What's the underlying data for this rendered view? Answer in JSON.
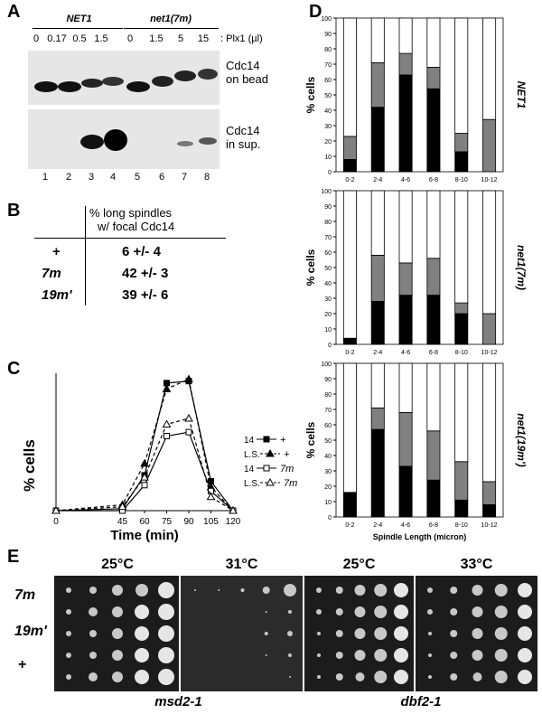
{
  "panelA": {
    "letter": "A",
    "group1": "NET1",
    "group2": "net1(7m)",
    "doses": [
      "0",
      "0.17",
      "0.5",
      "1.5",
      "0",
      "1.5",
      "5",
      "15"
    ],
    "dose_unit": ": Plx1 (µl)",
    "blot1_l1": "Cdc14",
    "blot1_l2": "on bead",
    "blot2_l1": "Cdc14",
    "blot2_l2": "in sup.",
    "lanes": [
      "1",
      "2",
      "3",
      "4",
      "5",
      "6",
      "7",
      "8"
    ]
  },
  "panelB": {
    "letter": "B",
    "header1": "% long spindles",
    "header2": "w/  focal Cdc14",
    "rows": [
      {
        "label": "+",
        "value": "6 +/- 4"
      },
      {
        "label": "7m",
        "value": "42 +/- 3"
      },
      {
        "label": "19m'",
        "value": "39 +/- 6"
      }
    ]
  },
  "panelC": {
    "letter": "C",
    "ylabel": "% cells",
    "xlabel": "Time (min)",
    "legend": [
      {
        "a": "14",
        "b": "+"
      },
      {
        "a": "L.S.",
        "b": "+"
      },
      {
        "a": "14",
        "b": "7m"
      },
      {
        "a": "L.S.",
        "b": "7m"
      }
    ]
  },
  "panelD": {
    "letter": "D",
    "xaxis_title": "Spindle Length (micron)",
    "ylabel": "% cells"
  },
  "panelE": {
    "letter": "E",
    "temps": [
      "25°C",
      "31°C",
      "25°C",
      "33°C"
    ],
    "rows": [
      "7m",
      "19m'",
      "+"
    ],
    "strain1": "msd2-1",
    "strain2": "dbf2-1"
  },
  "colors": {
    "black": "#000000",
    "gray": "#808080",
    "white": "#ffffff"
  },
  "chart_data": [
    {
      "type": "line",
      "x": [
        0,
        45,
        60,
        75,
        90,
        105,
        120
      ],
      "xlabel": "Time (min)",
      "ylabel": "% cells",
      "xlim": [
        0,
        120
      ],
      "ylim": [
        0,
        70
      ],
      "series": [
        {
          "name": "14 +",
          "values": [
            0,
            1,
            18,
            65,
            66,
            15,
            0
          ],
          "marker": "filled-square",
          "dash": false
        },
        {
          "name": "L.S. +",
          "values": [
            0,
            3,
            24,
            62,
            67,
            12,
            0
          ],
          "marker": "filled-triangle",
          "dash": true
        },
        {
          "name": "14 7m",
          "values": [
            0,
            0,
            13,
            38,
            40,
            10,
            0
          ],
          "marker": "open-square",
          "dash": false
        },
        {
          "name": "L.S. 7m",
          "values": [
            0,
            2,
            17,
            44,
            47,
            7,
            0
          ],
          "marker": "open-triangle",
          "dash": true
        }
      ]
    },
    {
      "type": "bar",
      "stacked": true,
      "title": "NET1",
      "categories": [
        "0-2",
        "2-4",
        "4-6",
        "6-8",
        "8-10",
        "10-12"
      ],
      "ylabel": "% cells",
      "ylim": [
        0,
        100
      ],
      "yticks": [
        0,
        10,
        20,
        30,
        40,
        50,
        60,
        70,
        80,
        90,
        100
      ],
      "series": [
        {
          "values": [
            8,
            42,
            63,
            54,
            13,
            0
          ],
          "color": "#000000"
        },
        {
          "values": [
            15,
            29,
            14,
            14,
            12,
            34
          ],
          "color": "#808080"
        },
        {
          "values": [
            77,
            29,
            23,
            32,
            75,
            66
          ],
          "color": "#ffffff"
        }
      ]
    },
    {
      "type": "bar",
      "stacked": true,
      "title": "net1(7m)",
      "categories": [
        "0-2",
        "2-4",
        "4-6",
        "6-8",
        "8-10",
        "10-12"
      ],
      "ylabel": "% cells",
      "ylim": [
        0,
        100
      ],
      "yticks": [
        0,
        10,
        20,
        30,
        40,
        50,
        60,
        70,
        80,
        90,
        100
      ],
      "series": [
        {
          "values": [
            4,
            28,
            32,
            32,
            20,
            0
          ],
          "color": "#000000"
        },
        {
          "values": [
            0,
            30,
            21,
            24,
            7,
            20
          ],
          "color": "#808080"
        },
        {
          "values": [
            96,
            42,
            47,
            44,
            73,
            80
          ],
          "color": "#ffffff"
        }
      ]
    },
    {
      "type": "bar",
      "stacked": true,
      "title": "net1(19m')",
      "categories": [
        "0-2",
        "2-4",
        "4-6",
        "6-8",
        "8-10",
        "10-12"
      ],
      "xlabel": "Spindle Length (micron)",
      "ylabel": "% cells",
      "ylim": [
        0,
        100
      ],
      "yticks": [
        0,
        10,
        20,
        30,
        40,
        50,
        60,
        70,
        80,
        90,
        100
      ],
      "series": [
        {
          "values": [
            16,
            57,
            33,
            24,
            11,
            8
          ],
          "color": "#000000"
        },
        {
          "values": [
            0,
            14,
            35,
            32,
            25,
            15
          ],
          "color": "#808080"
        },
        {
          "values": [
            84,
            29,
            32,
            44,
            64,
            77
          ],
          "color": "#ffffff"
        }
      ]
    }
  ]
}
